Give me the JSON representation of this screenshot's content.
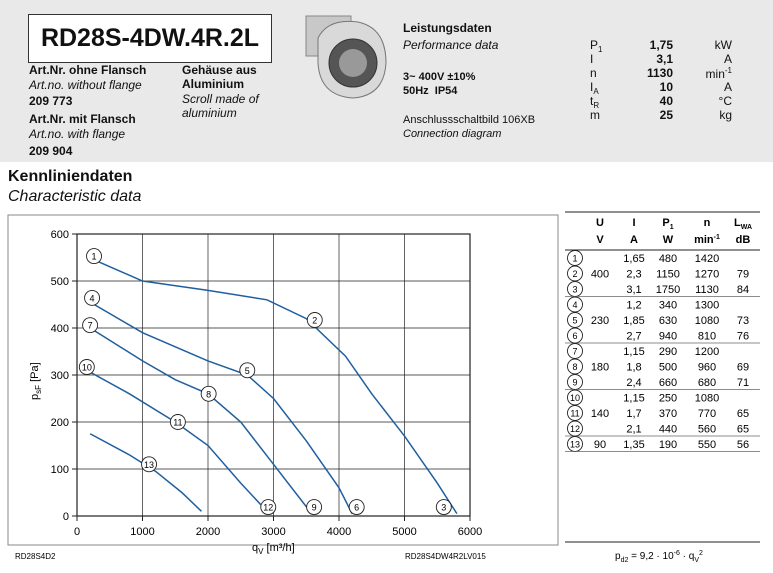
{
  "header": {
    "model": "RD28S-4DW.4R.2L",
    "art_without": {
      "label": "Art.Nr. ohne Flansch",
      "translation": "Art.no. without flange",
      "number": "209 773"
    },
    "art_with": {
      "label": "Art.Nr. mit Flansch",
      "translation": "Art.no. with flange",
      "number": "209 904"
    },
    "housing": {
      "label": "Gehäuse aus Aluminium",
      "translation": "Scroll made of aluminium"
    },
    "performance": {
      "title": "Leistungsdaten",
      "translation": "Performance data",
      "voltage": "3~ 400V ±10%",
      "frequency": "50Hz  IP54",
      "diagram": "Anschlussschaltbild 106XB",
      "diagram_translation": "Connection diagram",
      "specs": [
        {
          "symbol": "P",
          "sub": "1",
          "value": "1,75",
          "unit": "kW"
        },
        {
          "symbol": "I",
          "value": "3,1",
          "unit": "A"
        },
        {
          "symbol": "n",
          "value": "1130",
          "unit": "min",
          "unit_sup": "-1"
        },
        {
          "symbol": "I",
          "sub": "A",
          "value": "10",
          "unit": "A"
        },
        {
          "symbol": "t",
          "sub": "R",
          "value": "40",
          "unit": "°C"
        },
        {
          "symbol": "m",
          "value": "25",
          "unit": "kg"
        }
      ]
    }
  },
  "section": {
    "title": "Kennliniendaten",
    "translation": "Characteristic data"
  },
  "chart_data": {
    "type": "line",
    "xlabel": {
      "main": "q",
      "sub": "V",
      "rest": " [m³/h]"
    },
    "ylabel": {
      "main": "p",
      "sub": "sF",
      "rest": " [Pa]"
    },
    "xlim": [
      0,
      6000
    ],
    "ylim": [
      0,
      600
    ],
    "xticks": [
      0,
      1000,
      2000,
      3000,
      4000,
      5000,
      6000
    ],
    "yticks": [
      0,
      100,
      200,
      300,
      400,
      500,
      600
    ],
    "grid": true,
    "color": "#1f5f9f",
    "series": [
      {
        "x": [
          260,
          1000,
          2000,
          2900,
          3500,
          4100,
          4500,
          5000,
          5500,
          5800
        ],
        "values": [
          545,
          500,
          480,
          460,
          420,
          340,
          260,
          170,
          70,
          5
        ],
        "markers": [
          {
            "label": "1",
            "x": 260,
            "y": 553
          },
          {
            "label": "2",
            "x": 3630,
            "y": 417
          },
          {
            "label": "3",
            "x": 5600,
            "y": 19
          }
        ]
      },
      {
        "x": [
          200,
          1000,
          2000,
          2600,
          3000,
          3500,
          4000,
          4200
        ],
        "values": [
          455,
          390,
          330,
          300,
          250,
          160,
          60,
          5
        ],
        "markers": [
          {
            "label": "4",
            "x": 230,
            "y": 464
          },
          {
            "label": "5",
            "x": 2600,
            "y": 310
          },
          {
            "label": "6",
            "x": 4270,
            "y": 19
          }
        ]
      },
      {
        "x": [
          200,
          1000,
          1500,
          2000,
          2500,
          3000,
          3500,
          3600
        ],
        "values": [
          400,
          330,
          290,
          260,
          200,
          110,
          20,
          5
        ],
        "markers": [
          {
            "label": "7",
            "x": 200,
            "y": 406
          },
          {
            "label": "8",
            "x": 2010,
            "y": 260
          },
          {
            "label": "9",
            "x": 3620,
            "y": 19
          }
        ]
      },
      {
        "x": [
          150,
          800,
          1500,
          2000,
          2500,
          2900
        ],
        "values": [
          310,
          260,
          200,
          150,
          70,
          10
        ],
        "markers": [
          {
            "label": "10",
            "x": 150,
            "y": 317
          },
          {
            "label": "11",
            "x": 1540,
            "y": 200
          },
          {
            "label": "12",
            "x": 2920,
            "y": 19
          }
        ]
      },
      {
        "x": [
          200,
          800,
          1200,
          1600,
          1900
        ],
        "values": [
          175,
          130,
          95,
          50,
          10
        ],
        "markers": [
          {
            "label": "13",
            "x": 1100,
            "y": 110
          }
        ]
      }
    ]
  },
  "table": {
    "header": [
      [
        {
          "text": "U"
        },
        {
          "text": "I"
        },
        {
          "text": "P",
          "sub": "1"
        },
        {
          "text": "n"
        },
        {
          "text": "L",
          "sub": "WA"
        }
      ],
      [
        {
          "text": "V"
        },
        {
          "text": "A"
        },
        {
          "text": "W"
        },
        {
          "text": "min",
          "sup": "-1"
        },
        {
          "text": "dB"
        }
      ]
    ],
    "rows": [
      {
        "id": "1",
        "I": "1,65",
        "P": "480",
        "n": "1420"
      },
      {
        "id": "2",
        "U": "400",
        "I": "2,3",
        "P": "1150",
        "n": "1270",
        "L": "79"
      },
      {
        "id": "3",
        "I": "3,1",
        "P": "1750",
        "n": "1130",
        "L": "84"
      },
      {
        "id": "4",
        "I": "1,2",
        "P": "340",
        "n": "1300"
      },
      {
        "id": "5",
        "U": "230",
        "I": "1,85",
        "P": "630",
        "n": "1080",
        "L": "73"
      },
      {
        "id": "6",
        "I": "2,7",
        "P": "940",
        "n": "810",
        "L": "76"
      },
      {
        "id": "7",
        "I": "1,15",
        "P": "290",
        "n": "1200"
      },
      {
        "id": "8",
        "U": "180",
        "I": "1,8",
        "P": "500",
        "n": "960",
        "L": "69"
      },
      {
        "id": "9",
        "I": "2,4",
        "P": "660",
        "n": "680",
        "L": "71"
      },
      {
        "id": "10",
        "I": "1,15",
        "P": "250",
        "n": "1080"
      },
      {
        "id": "11",
        "U": "140",
        "I": "1,7",
        "P": "370",
        "n": "770",
        "L": "65"
      },
      {
        "id": "12",
        "I": "2,1",
        "P": "440",
        "n": "560",
        "L": "65"
      },
      {
        "id": "13",
        "U": "90",
        "I": "1,35",
        "P": "190",
        "n": "550",
        "L": "56"
      }
    ]
  },
  "footer": {
    "left": "RD28S4D2",
    "middle": "RD28S4DW4R2LV015",
    "formula": [
      "p",
      "d2",
      " = 9,2 · 10",
      "-6",
      " · q",
      "V",
      "2"
    ]
  }
}
